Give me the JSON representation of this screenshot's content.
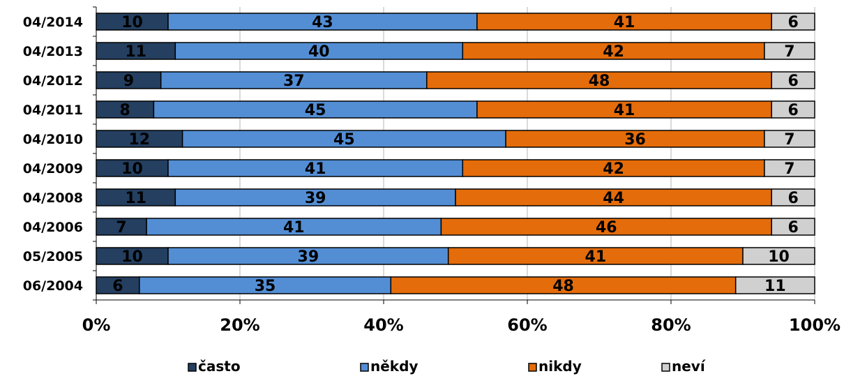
{
  "chart_data": {
    "type": "bar",
    "orientation": "horizontal",
    "stacked": "percent",
    "categories": [
      "04/2014",
      "04/2013",
      "04/2012",
      "04/2011",
      "04/2010",
      "04/2009",
      "04/2008",
      "04/2006",
      "05/2005",
      "06/2004"
    ],
    "series": [
      {
        "name": "často",
        "color": "#243f60",
        "values": [
          10,
          11,
          9,
          8,
          12,
          10,
          11,
          7,
          10,
          6
        ]
      },
      {
        "name": "někdy",
        "color": "#538ed5",
        "values": [
          43,
          40,
          37,
          45,
          45,
          41,
          39,
          41,
          39,
          35
        ]
      },
      {
        "name": "nikdy",
        "color": "#e46c0a",
        "values": [
          41,
          42,
          48,
          41,
          36,
          42,
          44,
          46,
          41,
          48
        ]
      },
      {
        "name": "neví",
        "color": "#d0d0d0",
        "values": [
          6,
          7,
          6,
          6,
          7,
          7,
          6,
          6,
          10,
          11
        ]
      }
    ],
    "x_ticks": [
      "0%",
      "20%",
      "40%",
      "60%",
      "80%",
      "100%"
    ],
    "xlim": [
      0,
      100
    ],
    "grid": true,
    "legend_position": "bottom"
  }
}
